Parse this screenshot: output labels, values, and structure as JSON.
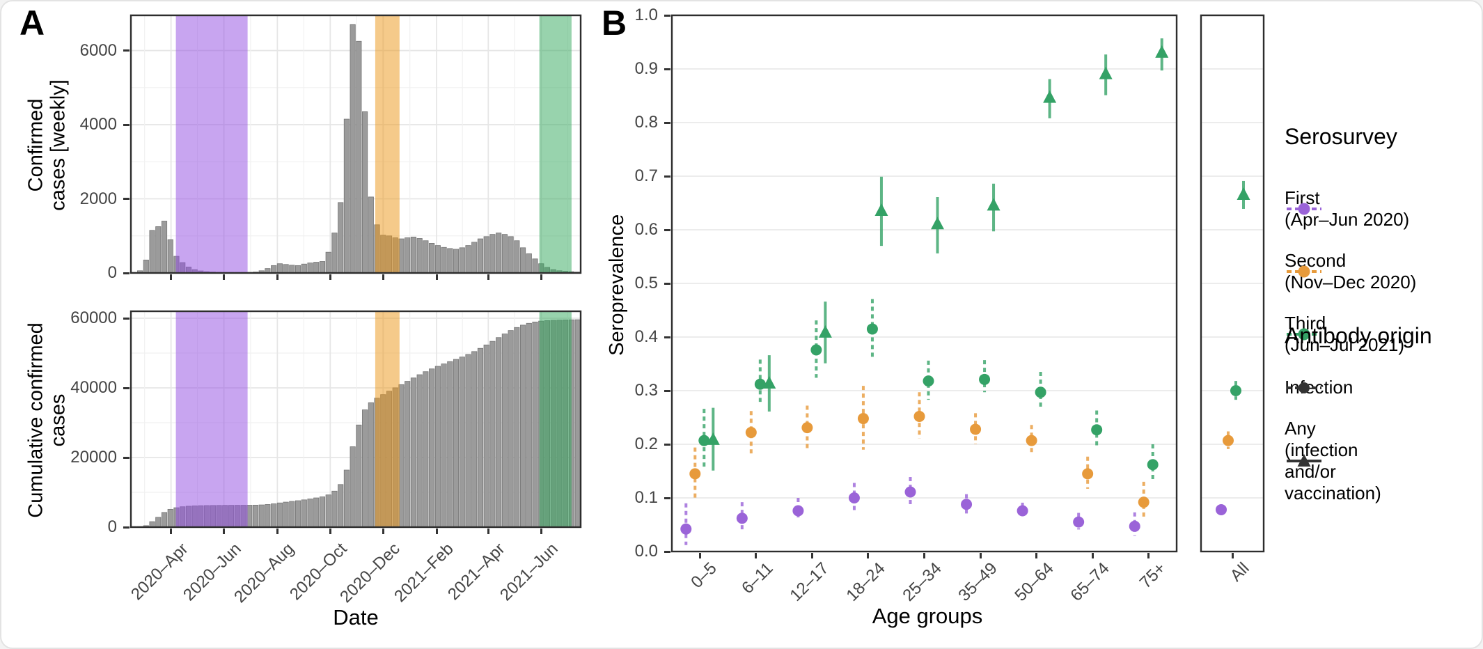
{
  "figure": {
    "panel_a_label": "A",
    "panel_b_label": "B"
  },
  "colors": {
    "background": "#ffffff",
    "bar_fill": "#9b9b9b",
    "bar_stroke": "#757575",
    "grid_major": "#e6e6e6",
    "grid_minor": "#f1f1f1",
    "panel_border": "#2d2d2d",
    "axis_text": "#454545",
    "tick_mark": "#333333",
    "first": "#9a63d8",
    "second": "#e79a3b",
    "third": "#34a266",
    "band_first": "#914be1",
    "band_second": "#eb9515",
    "band_third": "#31a75b"
  },
  "chart_data": [
    {
      "id": "weekly-confirmed-cases",
      "type": "bar",
      "ylabel": "Confirmed cases [weekly]",
      "ylabel_lines": "Confirmed\ncases [weekly]",
      "xlabel": "Date",
      "x_start": "2020-02-23",
      "x_step_days": 7,
      "ylim": [
        0,
        6950
      ],
      "yticks": [
        {
          "v": 0,
          "label": "0"
        },
        {
          "v": 2000,
          "label": "2000"
        },
        {
          "v": 4000,
          "label": "4000"
        },
        {
          "v": 6000,
          "label": "6000"
        }
      ],
      "x_ticks": [
        {
          "week": 5.4,
          "label": "2020–Apr"
        },
        {
          "week": 14.1,
          "label": "2020–Jun"
        },
        {
          "week": 22.9,
          "label": "2020–Aug"
        },
        {
          "week": 31.6,
          "label": "2020–Oct"
        },
        {
          "week": 40.3,
          "label": "2020–Dec"
        },
        {
          "week": 49.1,
          "label": "2021–Feb"
        },
        {
          "week": 57.6,
          "label": "2021–Apr"
        },
        {
          "week": 66.3,
          "label": "2021–Jun"
        }
      ],
      "values": [
        15,
        60,
        350,
        1150,
        1250,
        1400,
        900,
        450,
        280,
        160,
        90,
        55,
        35,
        25,
        20,
        15,
        12,
        10,
        10,
        12,
        25,
        60,
        120,
        200,
        250,
        230,
        210,
        200,
        240,
        270,
        290,
        310,
        560,
        1080,
        1900,
        4150,
        6700,
        6250,
        4350,
        2050,
        1300,
        1020,
        1000,
        950,
        920,
        950,
        970,
        930,
        870,
        800,
        740,
        690,
        660,
        640,
        680,
        740,
        830,
        920,
        980,
        1040,
        1080,
        1040,
        980,
        870,
        680,
        520,
        380,
        250,
        150,
        90,
        60,
        45,
        35,
        25
      ],
      "bands": [
        {
          "label": "First serosurvey (Apr–Jun 2020)",
          "color_key": "band_first",
          "week_start": 6.2,
          "week_end": 18.0
        },
        {
          "label": "Second serosurvey (Nov–Dec 2020)",
          "color_key": "band_second",
          "week_start": 39.0,
          "week_end": 43.0
        },
        {
          "label": "Third serosurvey (Jun–Jul 2021)",
          "color_key": "band_third",
          "week_start": 66.0,
          "week_end": 71.3
        }
      ]
    },
    {
      "id": "cumulative-confirmed-cases",
      "type": "bar",
      "ylabel": "Cumulative confirmed cases",
      "ylabel_lines": "Cumulative confirmed\ncases",
      "ylim": [
        0,
        62000
      ],
      "yticks": [
        {
          "v": 0,
          "label": "0"
        },
        {
          "v": 20000,
          "label": "20000"
        },
        {
          "v": 40000,
          "label": "40000"
        },
        {
          "v": 60000,
          "label": "60000"
        }
      ],
      "values": [
        15,
        75,
        425,
        1575,
        2825,
        4225,
        5125,
        5575,
        5855,
        6015,
        6105,
        6160,
        6195,
        6220,
        6240,
        6255,
        6267,
        6277,
        6287,
        6299,
        6324,
        6384,
        6504,
        6704,
        6954,
        7184,
        7394,
        7594,
        7834,
        8104,
        8394,
        8704,
        9264,
        10344,
        12244,
        16394,
        23094,
        29344,
        33694,
        35744,
        37044,
        38064,
        39064,
        40014,
        40934,
        41884,
        42854,
        43784,
        44654,
        45454,
        46194,
        46884,
        47544,
        48184,
        48864,
        49604,
        50434,
        51354,
        52334,
        53374,
        54454,
        55494,
        56474,
        57344,
        58024,
        58544,
        58924,
        59174,
        59324,
        59414,
        59474,
        59519,
        59554,
        59579
      ],
      "bands_same_as": "weekly-confirmed-cases"
    },
    {
      "id": "seroprevalence-by-age",
      "type": "scatter",
      "ylabel": "Seroprevalence",
      "xlabel": "Age groups",
      "ylim": [
        0,
        1.0
      ],
      "yticks": [
        {
          "v": 0.0,
          "label": "0.0"
        },
        {
          "v": 0.1,
          "label": "0.1"
        },
        {
          "v": 0.2,
          "label": "0.2"
        },
        {
          "v": 0.3,
          "label": "0.3"
        },
        {
          "v": 0.4,
          "label": "0.4"
        },
        {
          "v": 0.5,
          "label": "0.5"
        },
        {
          "v": 0.6,
          "label": "0.6"
        },
        {
          "v": 0.7,
          "label": "0.7"
        },
        {
          "v": 0.8,
          "label": "0.8"
        },
        {
          "v": 0.9,
          "label": "0.9"
        },
        {
          "v": 1.0,
          "label": "1.0"
        }
      ],
      "categories": [
        "0–5",
        "6–11",
        "12–17",
        "18–24",
        "25–34",
        "35–49",
        "50–64",
        "65–74",
        "75+"
      ],
      "all_label": "All",
      "series": [
        {
          "name": "First serosurvey – Infection",
          "survey": "First (Apr–Jun 2020)",
          "origin": "Infection",
          "marker": "circle",
          "ci_style": "dashed",
          "color_key": "first",
          "points": [
            {
              "v": 0.042,
              "lo": 0.012,
              "hi": 0.09
            },
            {
              "v": 0.062,
              "lo": 0.04,
              "hi": 0.092
            },
            {
              "v": 0.076,
              "lo": 0.058,
              "hi": 0.1
            },
            {
              "v": 0.1,
              "lo": 0.076,
              "hi": 0.128
            },
            {
              "v": 0.111,
              "lo": 0.087,
              "hi": 0.139
            },
            {
              "v": 0.088,
              "lo": 0.071,
              "hi": 0.107
            },
            {
              "v": 0.076,
              "lo": 0.063,
              "hi": 0.091
            },
            {
              "v": 0.055,
              "lo": 0.041,
              "hi": 0.072
            },
            {
              "v": 0.047,
              "lo": 0.029,
              "hi": 0.073
            }
          ],
          "all": {
            "v": 0.078,
            "lo": 0.07,
            "hi": 0.087
          }
        },
        {
          "name": "Second serosurvey – Infection",
          "survey": "Second (Nov–Dec 2020)",
          "origin": "Infection",
          "marker": "circle",
          "ci_style": "dashed",
          "color_key": "second",
          "points": [
            {
              "v": 0.145,
              "lo": 0.099,
              "hi": 0.194
            },
            {
              "v": 0.222,
              "lo": 0.183,
              "hi": 0.262
            },
            {
              "v": 0.231,
              "lo": 0.192,
              "hi": 0.272
            },
            {
              "v": 0.248,
              "lo": 0.19,
              "hi": 0.309
            },
            {
              "v": 0.252,
              "lo": 0.211,
              "hi": 0.297
            },
            {
              "v": 0.228,
              "lo": 0.2,
              "hi": 0.258
            },
            {
              "v": 0.207,
              "lo": 0.18,
              "hi": 0.236
            },
            {
              "v": 0.145,
              "lo": 0.117,
              "hi": 0.177
            },
            {
              "v": 0.092,
              "lo": 0.062,
              "hi": 0.13
            }
          ],
          "all": {
            "v": 0.207,
            "lo": 0.191,
            "hi": 0.224
          }
        },
        {
          "name": "Third serosurvey – Infection",
          "survey": "Third (Jun–Jul 2021)",
          "origin": "Infection",
          "marker": "circle",
          "ci_style": "dashed",
          "color_key": "third",
          "points": [
            {
              "v": 0.207,
              "lo": 0.158,
              "hi": 0.266
            },
            {
              "v": 0.312,
              "lo": 0.279,
              "hi": 0.358
            },
            {
              "v": 0.376,
              "lo": 0.324,
              "hi": 0.431
            },
            {
              "v": 0.415,
              "lo": 0.36,
              "hi": 0.471
            },
            {
              "v": 0.318,
              "lo": 0.283,
              "hi": 0.356
            },
            {
              "v": 0.321,
              "lo": 0.297,
              "hi": 0.357
            },
            {
              "v": 0.297,
              "lo": 0.269,
              "hi": 0.335
            },
            {
              "v": 0.227,
              "lo": 0.194,
              "hi": 0.263
            },
            {
              "v": 0.162,
              "lo": 0.13,
              "hi": 0.2
            }
          ],
          "all": {
            "v": 0.3,
            "lo": 0.283,
            "hi": 0.318
          }
        },
        {
          "name": "Third serosurvey – Any (infection and/or vaccination)",
          "survey": "Third (Jun–Jul 2021)",
          "origin": "Any (infection and/or vaccination)",
          "marker": "triangle",
          "ci_style": "solid",
          "color_key": "third",
          "points": [
            {
              "v": 0.208,
              "lo": 0.151,
              "hi": 0.268
            },
            {
              "v": 0.313,
              "lo": 0.261,
              "hi": 0.366
            },
            {
              "v": 0.408,
              "lo": 0.351,
              "hi": 0.466
            },
            {
              "v": 0.635,
              "lo": 0.57,
              "hi": 0.699
            },
            {
              "v": 0.61,
              "lo": 0.556,
              "hi": 0.661
            },
            {
              "v": 0.645,
              "lo": 0.597,
              "hi": 0.686
            },
            {
              "v": 0.846,
              "lo": 0.808,
              "hi": 0.881
            },
            {
              "v": 0.89,
              "lo": 0.851,
              "hi": 0.927
            },
            {
              "v": 0.93,
              "lo": 0.897,
              "hi": 0.957
            }
          ],
          "all": {
            "v": 0.665,
            "lo": 0.639,
            "hi": 0.691
          }
        }
      ]
    }
  ],
  "legend": {
    "serosurvey": {
      "title": "Serosurvey",
      "items": [
        {
          "label": "First\n(Apr–Jun 2020)",
          "color_key": "first"
        },
        {
          "label": "Second\n(Nov–Dec 2020)",
          "color_key": "second"
        },
        {
          "label": "Third\n(Jun–Jul 2021)",
          "color_key": "third"
        }
      ]
    },
    "antibody": {
      "title": "Antibody origin",
      "items": [
        {
          "label": "Infection",
          "marker": "circle",
          "line": "dashed"
        },
        {
          "label": "Any\n(infection\nand/or\nvaccination)",
          "marker": "triangle",
          "line": "solid"
        }
      ]
    }
  }
}
